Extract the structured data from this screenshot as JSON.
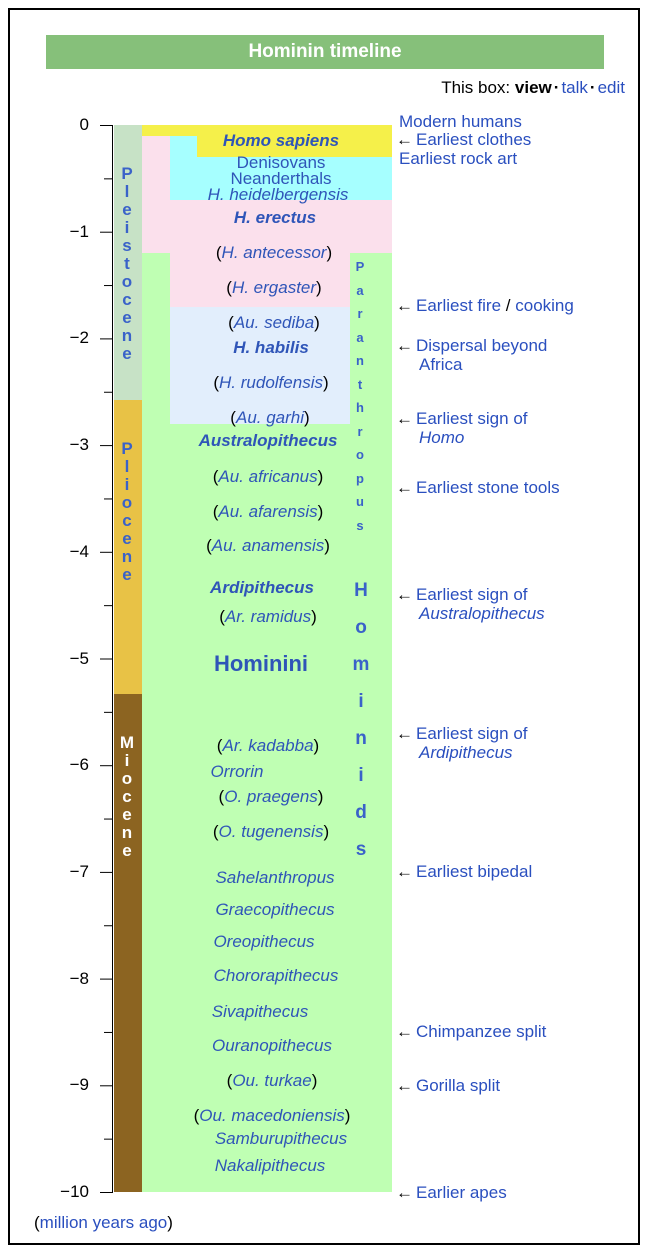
{
  "title": "Hominin timeline",
  "navbox": {
    "prefix": "This box:",
    "view": "view",
    "talk": "talk",
    "edit": "edit",
    "sep": "·"
  },
  "units": {
    "open": "(",
    "link": "million years ago",
    "close": ")"
  },
  "axis": {
    "ticks": [
      "0",
      "−1",
      "−2",
      "−3",
      "−4",
      "−5",
      "−6",
      "−7",
      "−8",
      "−9",
      "−10"
    ]
  },
  "epochs": [
    {
      "name": "Pleistocene",
      "from": 0,
      "to": 2.58,
      "color": "#c7e2c6",
      "text_color": "#3a62c9"
    },
    {
      "name": "Pliocene",
      "from": 2.58,
      "to": 5.33,
      "color": "#e8c246",
      "text_color": "#3a62c9"
    },
    {
      "name": "Miocene",
      "from": 5.33,
      "to": 10,
      "color": "#8c6421",
      "text_color": "#ffffff"
    }
  ],
  "regions_colors": {
    "hominini": "#bfffb3",
    "homo_sapiens": "#f5f04a",
    "archaic": "#a6ffff",
    "erectus": "#fbe0ec",
    "habilis": "#e2eefc"
  },
  "vertical_labels": {
    "paranthropus": "Paranthropus",
    "hominids": "Hominids"
  },
  "taxa": {
    "homo_sapiens": "Homo sapiens",
    "denisovans": "Denisovans",
    "neanderthals": "Neanderthals",
    "heidelbergensis": "H. heidelbergensis",
    "erectus": "H. erectus",
    "antecessor": "H. antecessor",
    "ergaster": "H. ergaster",
    "sediba": "Au. sediba",
    "habilis": "H. habilis",
    "rudolfensis": "H. rudolfensis",
    "garhi": "Au. garhi",
    "australopithecus": "Australopithecus",
    "africanus": "Au. africanus",
    "afarensis": "Au. afarensis",
    "anamensis": "Au. anamensis",
    "ardipithecus": "Ardipithecus",
    "ramidus": "Ar. ramidus",
    "hominini": "Hominini",
    "kadabba": "Ar. kadabba",
    "orrorin": "Orrorin",
    "praegens": "O. praegens",
    "tugenensis": "O. tugenensis",
    "sahelanthropus": "Sahelanthropus",
    "graecopithecus": "Graecopithecus",
    "oreopithecus": "Oreopithecus",
    "chororapithecus": "Chororapithecus",
    "sivapithecus": "Sivapithecus",
    "ouranopithecus": "Ouranopithecus",
    "turkae": "Ou. turkae",
    "macedoniensis": "Ou. macedoniensis",
    "samburupithecus": "Samburupithecus",
    "nakalipithecus": "Nakalipithecus"
  },
  "events": {
    "modern_humans": "Modern humans",
    "earliest_clothes": "Earliest clothes",
    "earliest_rock_art": "Earliest rock art",
    "fire_a": "Earliest fire",
    "fire_sep": "/",
    "fire_b": "cooking",
    "dispersal_1": "Dispersal beyond",
    "dispersal_2": "Africa",
    "homo_1": "Earliest sign of",
    "homo_2": "Homo",
    "stone_tools": "Earliest stone tools",
    "austr_1": "Earliest sign of",
    "austr_2": "Australopithecus",
    "ardi_1": "Earliest sign of",
    "ardi_2": "Ardipithecus",
    "bipedal": "Earliest bipedal",
    "chimp": "Chimpanzee split",
    "gorilla": "Gorilla split",
    "apes": "Earlier apes"
  },
  "arrow": "←"
}
